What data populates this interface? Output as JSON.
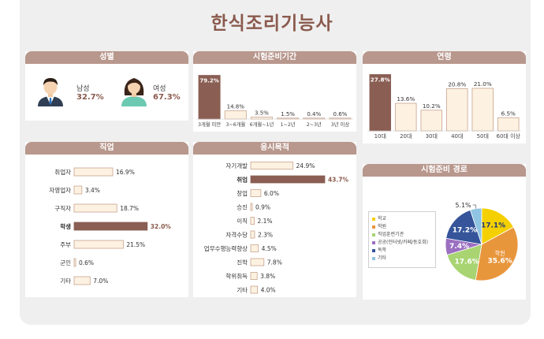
{
  "page": {
    "title": "한식조리기능사"
  },
  "colors": {
    "accent": "#8a5a4d",
    "bar_fill": "#fdf2e1",
    "bar_border": "#c9a38f",
    "highlight": "#8a5e53",
    "header": "#b8978d"
  },
  "panels": {
    "gender": "성별",
    "exam_period": "시험준비기간",
    "age": "연령",
    "job": "직업",
    "purpose": "응시목적",
    "route": "시험준비 경로"
  },
  "gender": {
    "male": {
      "label": "남성",
      "value": "32.7%"
    },
    "female": {
      "label": "여성",
      "value": "67.3%"
    }
  },
  "chart_data": [
    {
      "type": "bar",
      "panel": "시험준비기간",
      "categories": [
        "3개월 미만",
        "3~6개월",
        "6개월~1년",
        "1~2년",
        "2~3년",
        "3년 이상"
      ],
      "values": [
        79.2,
        14.8,
        3.5,
        1.5,
        0.4,
        0.6
      ],
      "labels": [
        "79.2%",
        "14.8%",
        "3.5%",
        "1.5%",
        "0.4%",
        "0.6%"
      ],
      "highlight": 0,
      "ylim": [
        0,
        80
      ]
    },
    {
      "type": "bar",
      "panel": "연령",
      "categories": [
        "10대",
        "20대",
        "30대",
        "40대",
        "50대",
        "60대 이상"
      ],
      "values": [
        27.8,
        13.6,
        10.2,
        20.8,
        21.0,
        6.5
      ],
      "labels": [
        "27.8%",
        "13.6%",
        "10.2%",
        "20.8%",
        "21.0%",
        "6.5%"
      ],
      "highlight": 0,
      "ylim": [
        0,
        28
      ]
    },
    {
      "type": "bar",
      "orientation": "horizontal",
      "panel": "직업",
      "categories": [
        "취업자",
        "자영업자",
        "구직자",
        "학생",
        "주부",
        "군인",
        "기타"
      ],
      "values": [
        16.9,
        3.4,
        18.7,
        32.0,
        21.5,
        0.6,
        7.0
      ],
      "labels": [
        "16.9%",
        "3.4%",
        "18.7%",
        "32.0%",
        "21.5%",
        "0.6%",
        "7.0%"
      ],
      "highlight": 3
    },
    {
      "type": "bar",
      "orientation": "horizontal",
      "panel": "응시목적",
      "categories": [
        "자기개발",
        "취업",
        "창업",
        "승진",
        "이직",
        "자격수당",
        "업무수행능력향상",
        "진학",
        "학위취득",
        "기타"
      ],
      "values": [
        24.9,
        43.7,
        6.0,
        0.9,
        2.1,
        2.3,
        4.5,
        7.8,
        3.8,
        4.0
      ],
      "labels": [
        "24.9%",
        "43.7%",
        "6.0%",
        "0.9%",
        "2.1%",
        "2.3%",
        "4.5%",
        "7.8%",
        "3.8%",
        "4.0%"
      ],
      "highlight": 1
    },
    {
      "type": "pie",
      "panel": "시험준비 경로",
      "categories": [
        "학교",
        "학원",
        "직업훈련기관",
        "공공(인터넷/카페/동호회)",
        "독학",
        "기타"
      ],
      "values": [
        17.1,
        35.6,
        17.6,
        7.4,
        17.2,
        5.1
      ],
      "labels": [
        "17.1%",
        "35.6%",
        "17.6%",
        "7.4%",
        "17.2%",
        "5.1%"
      ],
      "slice_names": [
        "",
        "학원",
        "",
        "",
        "",
        ""
      ],
      "colors": [
        "#f5d000",
        "#e8963c",
        "#a8d472",
        "#9b6fc1",
        "#35549a",
        "#8fc4e2"
      ],
      "legend": "left"
    }
  ]
}
